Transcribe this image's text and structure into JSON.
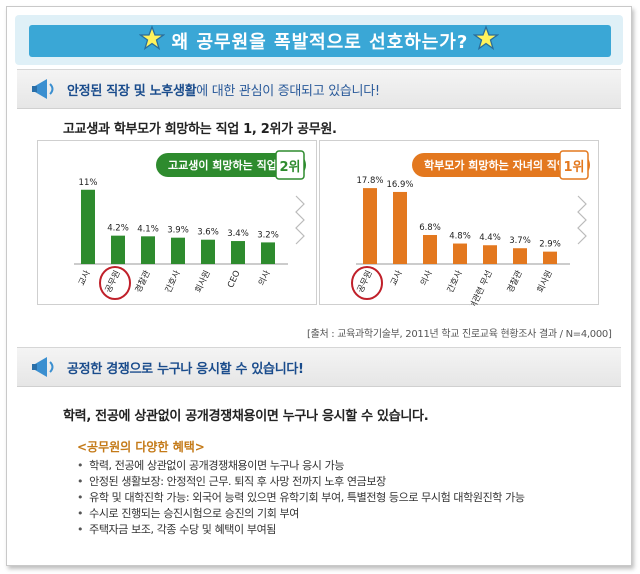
{
  "banner": {
    "title": "왜 공무원을 폭발적으로 선호하는가?"
  },
  "section1": {
    "heading_bold": "안정된 직장 및 노후생활",
    "heading_rest": "에 대한 관심이 증대되고 있습니다!",
    "subtitle": "고교생과 학부모가 희망하는 직업 1, 2위가 공무원."
  },
  "chart_data": [
    {
      "type": "bar",
      "title": "고교생이 희망하는 직업",
      "rank_badge": "2위",
      "categories": [
        "교사",
        "공무원",
        "경찰관",
        "간호사",
        "회사원",
        "CEO",
        "의사"
      ],
      "values": [
        11,
        4.2,
        4.1,
        3.9,
        3.6,
        3.4,
        3.2
      ],
      "value_labels": [
        "11%",
        "4.2%",
        "4.1%",
        "3.9%",
        "3.6%",
        "3.4%",
        "3.2%"
      ],
      "highlight": "공무원",
      "color": "#2e8b2e",
      "ylim": [
        0,
        12
      ]
    },
    {
      "type": "bar",
      "title": "학부모가 희망하는 자녀의 직업",
      "rank_badge": "1위",
      "categories": [
        "공무원",
        "교사",
        "의사",
        "간호사",
        "자녀관련 무선",
        "경찰관",
        "회사원"
      ],
      "values": [
        17.8,
        16.9,
        6.8,
        4.8,
        4.4,
        3.7,
        2.9
      ],
      "value_labels": [
        "17.8%",
        "16.9%",
        "6.8%",
        "4.8%",
        "4.4%",
        "3.7%",
        "2.9%"
      ],
      "highlight": "공무원",
      "color": "#e3781f",
      "ylim": [
        0,
        19
      ]
    }
  ],
  "source": "[출처 : 교육과학기술부, 2011년 학교 진로교육 현황조사 결과 / N=4,000]",
  "section2": {
    "heading": "공정한 경쟁으로 누구나 응시할 수 있습니다!",
    "subtitle": "학력, 전공에 상관없이 공개경쟁채용이면 누구나 응시할 수 있습니다.",
    "benefits_title": "<공무원의 다양한 혜택>",
    "benefits": [
      "학력, 전공에 상관없이 공개경쟁채용이면 누구나 응시 가능",
      "안정된 생활보장: 안정적인 근무. 퇴직 후 사망 전까지 노후 연금보장",
      "유학 및 대학진학 가능: 외국어 능력 있으면 유학기회 부여, 특별전형 등으로 무시험 대학원진학 가능",
      "수시로 진행되는 승진시험으로 승진의 기회 부여",
      "주택자금 보조, 각종 수당 및 혜택이 부여됨"
    ]
  },
  "colors": {
    "banner": "#3aa7d6",
    "green": "#2e8b2e",
    "orange": "#e3781f",
    "highlight_circle": "#c0202a",
    "heading_blue": "#1a4c8c"
  }
}
